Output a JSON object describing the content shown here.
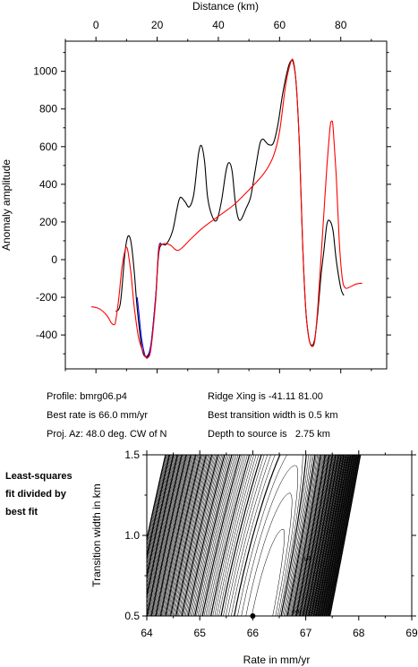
{
  "chart_data": [
    {
      "type": "line",
      "xlabel": "Distance (km)",
      "ylabel": "Anomaly amplitude",
      "xlim": [
        -10,
        95
      ],
      "ylim": [
        -580,
        1160
      ],
      "x_ticks": [
        0,
        20,
        40,
        60,
        80
      ],
      "y_ticks": [
        -400,
        -200,
        0,
        200,
        400,
        600,
        800,
        1000
      ],
      "series": [
        {
          "color": "#000000",
          "points": [
            [
              6.5,
              -275
            ],
            [
              8,
              -230
            ],
            [
              9.5,
              40
            ],
            [
              10.5,
              125
            ],
            [
              11.5,
              90
            ],
            [
              12.5,
              -60
            ],
            [
              13.5,
              -260
            ],
            [
              15,
              -470
            ],
            [
              16.5,
              -515
            ],
            [
              18,
              -450
            ],
            [
              19.5,
              -200
            ],
            [
              20.5,
              30
            ],
            [
              21.5,
              80
            ],
            [
              23,
              82
            ],
            [
              25,
              150
            ],
            [
              26.5,
              270
            ],
            [
              27.5,
              330
            ],
            [
              29,
              310
            ],
            [
              30.5,
              280
            ],
            [
              32,
              350
            ],
            [
              33.5,
              560
            ],
            [
              34.5,
              605
            ],
            [
              35.5,
              520
            ],
            [
              36.5,
              330
            ],
            [
              38,
              230
            ],
            [
              39.5,
              210
            ],
            [
              41,
              310
            ],
            [
              42.5,
              470
            ],
            [
              43.5,
              515
            ],
            [
              44.5,
              470
            ],
            [
              45.5,
              310
            ],
            [
              46.5,
              220
            ],
            [
              47.5,
              215
            ],
            [
              49,
              270
            ],
            [
              50.5,
              330
            ],
            [
              52,
              470
            ],
            [
              53.5,
              610
            ],
            [
              54.5,
              640
            ],
            [
              55.5,
              625
            ],
            [
              56.5,
              610
            ],
            [
              58,
              620
            ],
            [
              59.5,
              720
            ],
            [
              61,
              880
            ],
            [
              62.5,
              1000
            ],
            [
              63.5,
              1050
            ],
            [
              64.5,
              1045
            ],
            [
              65.5,
              920
            ],
            [
              66.5,
              600
            ],
            [
              67.5,
              100
            ],
            [
              68.5,
              -250
            ],
            [
              69.5,
              -410
            ],
            [
              70.5,
              -455
            ],
            [
              71.5,
              -420
            ],
            [
              72.5,
              -280
            ],
            [
              73.5,
              -90
            ],
            [
              74.5,
              50
            ],
            [
              75.5,
              190
            ],
            [
              76.5,
              205
            ],
            [
              77.5,
              150
            ],
            [
              78.5,
              0
            ],
            [
              80,
              -150
            ],
            [
              81,
              -190
            ]
          ]
        },
        {
          "color": "#0000ff",
          "points": [
            [
              13.5,
              -200
            ],
            [
              14,
              -280
            ],
            [
              15,
              -430
            ],
            [
              16.5,
              -520
            ],
            [
              18,
              -450
            ],
            [
              19.5,
              -200
            ],
            [
              20.5,
              60
            ],
            [
              21.5,
              82
            ]
          ]
        },
        {
          "color": "#ff0000",
          "points": [
            [
              -1.5,
              -250
            ],
            [
              1,
              -260
            ],
            [
              3.5,
              -295
            ],
            [
              5,
              -335
            ],
            [
              6,
              -345
            ],
            [
              6.5,
              -320
            ],
            [
              7.5,
              -200
            ],
            [
              8.5,
              -40
            ],
            [
              9.5,
              50
            ],
            [
              10,
              65
            ],
            [
              10.5,
              40
            ],
            [
              11.5,
              -80
            ],
            [
              12.5,
              -250
            ],
            [
              14,
              -420
            ],
            [
              16,
              -510
            ],
            [
              17,
              -520
            ],
            [
              18,
              -470
            ],
            [
              19.5,
              -220
            ],
            [
              20.5,
              50
            ],
            [
              21.5,
              80
            ],
            [
              23,
              85
            ],
            [
              24.5,
              75
            ],
            [
              27,
              50
            ],
            [
              31,
              110
            ],
            [
              35,
              170
            ],
            [
              40,
              230
            ],
            [
              45,
              290
            ],
            [
              50,
              370
            ],
            [
              55,
              460
            ],
            [
              58,
              550
            ],
            [
              60,
              680
            ],
            [
              62,
              930
            ],
            [
              63.5,
              1040
            ],
            [
              64.5,
              1055
            ],
            [
              65.5,
              920
            ],
            [
              66.5,
              600
            ],
            [
              67.5,
              100
            ],
            [
              68.5,
              -250
            ],
            [
              69.5,
              -410
            ],
            [
              70.5,
              -460
            ],
            [
              71.5,
              -430
            ],
            [
              72.5,
              -250
            ],
            [
              73.5,
              0
            ],
            [
              74.5,
              250
            ],
            [
              75.5,
              500
            ],
            [
              76.5,
              700
            ],
            [
              77,
              735
            ],
            [
              77.5,
              700
            ],
            [
              78.5,
              450
            ],
            [
              79.5,
              100
            ],
            [
              80.5,
              -100
            ],
            [
              81.5,
              -150
            ],
            [
              83,
              -145
            ],
            [
              85,
              -130
            ],
            [
              87,
              -125
            ]
          ]
        }
      ]
    },
    {
      "type": "contour",
      "xlabel": "Rate in mm/yr",
      "ylabel": "Transition width in km",
      "xlim": [
        64,
        69
      ],
      "ylim": [
        0.5,
        1.5
      ],
      "x_ticks": [
        64,
        65,
        66,
        67,
        68,
        69
      ],
      "y_ticks": [
        0.5,
        1.0,
        1.5
      ],
      "best_fit_point": [
        66.0,
        0.5
      ],
      "contour_labels": [
        "3",
        "2"
      ]
    }
  ],
  "info": {
    "profile": "Profile: bmrg06.p4",
    "best_rate": "Best rate is 66.0 mm/yr",
    "proj_az": "Proj. Az: 48.0 deg. CW of N",
    "ridge_xing": "Ridge Xing is -41.11 81.00",
    "transition": "Best transition width is 0.5 km",
    "depth": "Depth to source is   2.75 km"
  },
  "side_label": {
    "line1": "Least-squares",
    "line2": "fit divided by",
    "line3": "best fit"
  }
}
